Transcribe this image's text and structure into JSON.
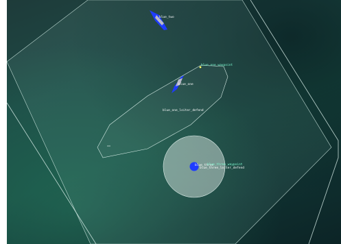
{
  "scene": {
    "vehicles": [
      {
        "label": "blue_two",
        "color": "#1f3cff"
      },
      {
        "label": "blue_one",
        "color": "#1f3cff"
      },
      {
        "label": "blue_three",
        "color": "#1f3cff"
      }
    ],
    "waypoints": [
      {
        "label": "blue_one_waypoint",
        "color": "#7fffd4"
      },
      {
        "label": "blue_three_waypoint",
        "color": "#7fffd4"
      }
    ],
    "zones": [
      {
        "label": "blue_one_loiter_defend",
        "color": "#ffffff"
      },
      {
        "label": "blue_three_loiter_defend",
        "color": "#ffffff"
      }
    ],
    "colors": {
      "water_dark": "#0c2426",
      "water_light": "#2b7a62",
      "boundary": "#c8e6e0",
      "vehicle": "#1f3cff",
      "waypoint_label": "#7fffd4"
    }
  }
}
